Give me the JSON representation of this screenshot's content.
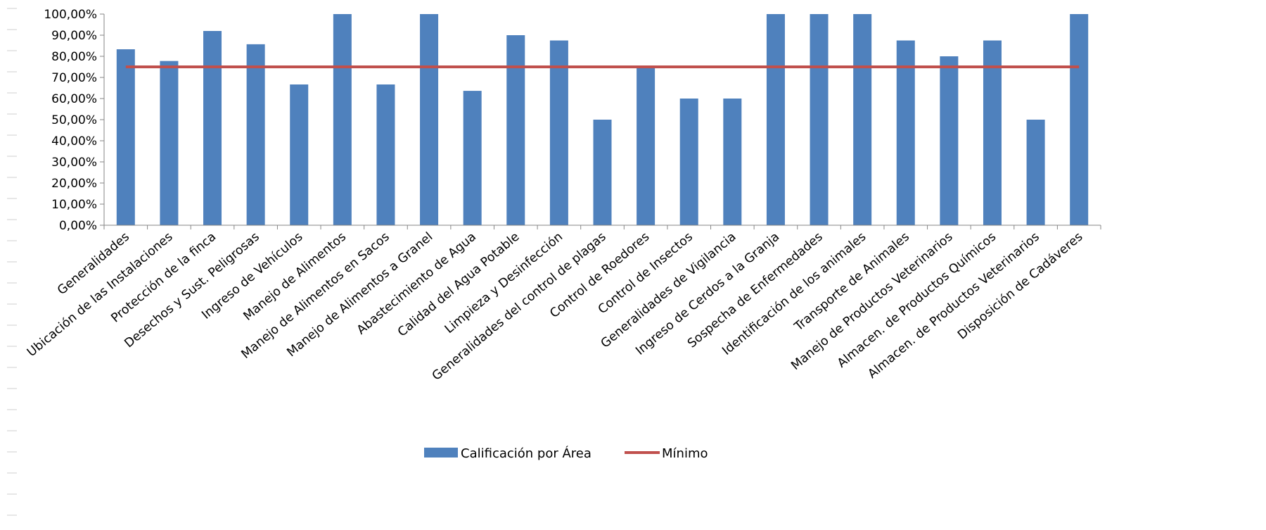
{
  "chart_data": {
    "type": "bar",
    "categories": [
      "Generalidades",
      "Ubicación de las Instalaciones",
      "Protección de la finca",
      "Desechos y Sust. Peligrosas",
      "Ingreso de Vehículos",
      "Manejo de Alimentos",
      "Manejo de Alimentos en Sacos",
      "Manejo de Alimentos a Granel",
      "Abastecimiento de Agua",
      "Calidad del Agua Potable",
      "Limpieza y Desinfección",
      "Generalidades del control de plagas",
      "Control de Roedores",
      "Control de Insectos",
      "Generalidades de Vigilancia",
      "Ingreso de Cerdos a la Granja",
      "Sospecha de Enfermedades",
      "Identificación de los animales",
      "Transporte de Animales",
      "Manejo de Productos Veterinarios",
      "Almacen. de Productos Químicos",
      "Almacen. de Productos Veterinarios",
      "Disposición de Cadáveres"
    ],
    "series": [
      {
        "name": "Calificación por Área",
        "kind": "bar",
        "color": "#4F81BD",
        "values": [
          83.33,
          77.78,
          92,
          85.71,
          66.67,
          100,
          66.67,
          100,
          63.64,
          90,
          87.5,
          50,
          75,
          60,
          60,
          100,
          100,
          100,
          87.5,
          80,
          87.5,
          50,
          100
        ]
      },
      {
        "name": "Mínimo",
        "kind": "line",
        "color": "#C0504D",
        "values": [
          75,
          75,
          75,
          75,
          75,
          75,
          75,
          75,
          75,
          75,
          75,
          75,
          75,
          75,
          75,
          75,
          75,
          75,
          75,
          75,
          75,
          75,
          75
        ]
      }
    ],
    "ylim": [
      0,
      100
    ],
    "y_ticks": [
      "0,00%",
      "10,00%",
      "20,00%",
      "30,00%",
      "40,00%",
      "50,00%",
      "60,00%",
      "70,00%",
      "80,00%",
      "90,00%",
      "100,00%"
    ],
    "title": "",
    "xlabel": "",
    "ylabel": "",
    "grid": false,
    "legend": {
      "placement": "bottom-center",
      "items": [
        "Calificación por Área",
        "Mínimo"
      ]
    }
  }
}
